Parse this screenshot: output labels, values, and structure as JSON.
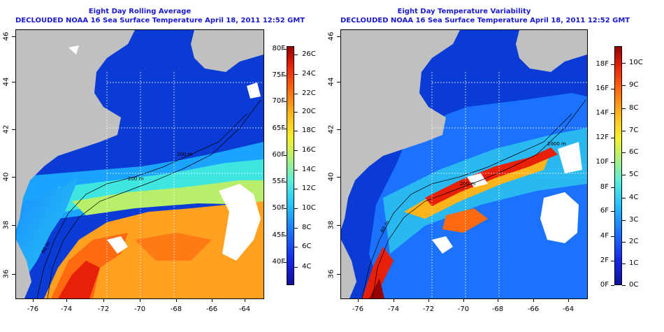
{
  "panels": [
    {
      "title_line1": "Eight Day Rolling Average",
      "title_line2": "DECLOUDED NOAA 16 Sea Surface Temperature April 18, 2011 12:52 GMT",
      "colorbar_left_labels": [
        "80F",
        "75F",
        "70F",
        "65F",
        "60F",
        "55F",
        "50F",
        "45F",
        "40F"
      ],
      "colorbar_right_labels": [
        "26C",
        "24C",
        "22C",
        "20C",
        "18C",
        "16C",
        "14C",
        "12C",
        "10C",
        "8C",
        "6C",
        "4C"
      ],
      "contour_labels": [
        "60 m",
        "200 m",
        "200 m"
      ]
    },
    {
      "title_line1": "Eight Day Temperature Variability",
      "title_line2": "DECLOUDED NOAA 16 Sea Surface Temperature April 18, 2011 12:52 GMT",
      "colorbar_left_labels": [
        "18F",
        "16F",
        "14F",
        "12F",
        "10F",
        "8F",
        "6F",
        "4F",
        "2F",
        "0F"
      ],
      "colorbar_right_labels": [
        "10C",
        "9C",
        "8C",
        "7C",
        "6C",
        "5C",
        "4C",
        "3C",
        "2C",
        "1C",
        "0C"
      ],
      "contour_labels": [
        "60 m",
        "200 m",
        "2000 m"
      ]
    }
  ],
  "x_axis_labels": [
    "-76",
    "-74",
    "-72",
    "-70",
    "-68",
    "-66",
    "-64"
  ],
  "y_axis_labels": [
    "46",
    "44",
    "42",
    "40",
    "38",
    "36"
  ],
  "colors": {
    "title": "#1a1acc",
    "land": "#c0c0c0",
    "cloud": "#ffffff",
    "cold": "#0a3bd4",
    "warm": "#ff8a18"
  }
}
